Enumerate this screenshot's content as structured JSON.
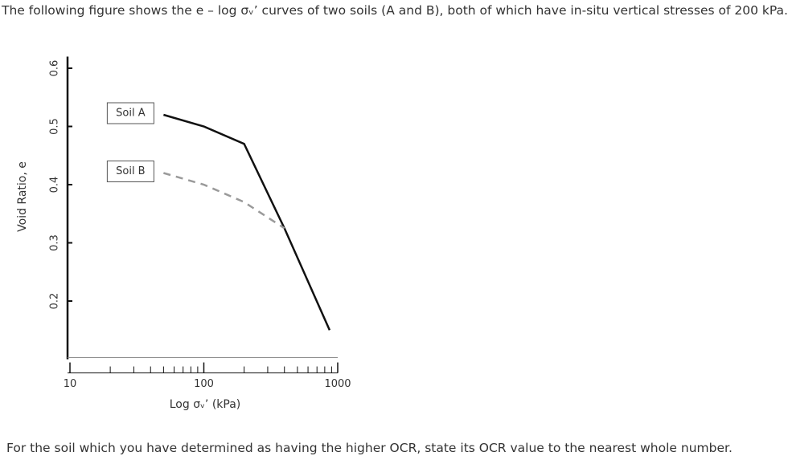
{
  "question": "The following figure shows the e – log σᵥ’ curves of two soils (A and B), both of which have in-situ vertical stresses of 200 kPa.",
  "prompt": "For the soil which you have determined as having the higher OCR, state its OCR value to the nearest whole number.",
  "chart_data": {
    "type": "line",
    "xlabel": "Log σᵥ’ (kPa)",
    "ylabel": "Void Ratio, e",
    "xscale": "log",
    "xlim": [
      10,
      1000
    ],
    "xticks": [
      10,
      100,
      1000
    ],
    "xticks_minor": [
      20,
      30,
      40,
      50,
      60,
      70,
      80,
      90,
      200,
      300,
      400,
      500,
      600,
      700,
      800,
      900
    ],
    "ylim": [
      0.1,
      0.62
    ],
    "yticks": [
      0.2,
      0.3,
      0.4,
      0.5,
      0.6
    ],
    "series": [
      {
        "name": "Soil A",
        "color": "#111111",
        "dash": false,
        "x": [
          50,
          100,
          200,
          400,
          870
        ],
        "values": [
          0.52,
          0.5,
          0.47,
          0.325,
          0.15
        ]
      },
      {
        "name": "Soil B",
        "color": "#9a9a9a",
        "dash": true,
        "x": [
          50,
          100,
          200,
          400
        ],
        "values": [
          0.42,
          0.4,
          0.37,
          0.325
        ]
      }
    ]
  }
}
